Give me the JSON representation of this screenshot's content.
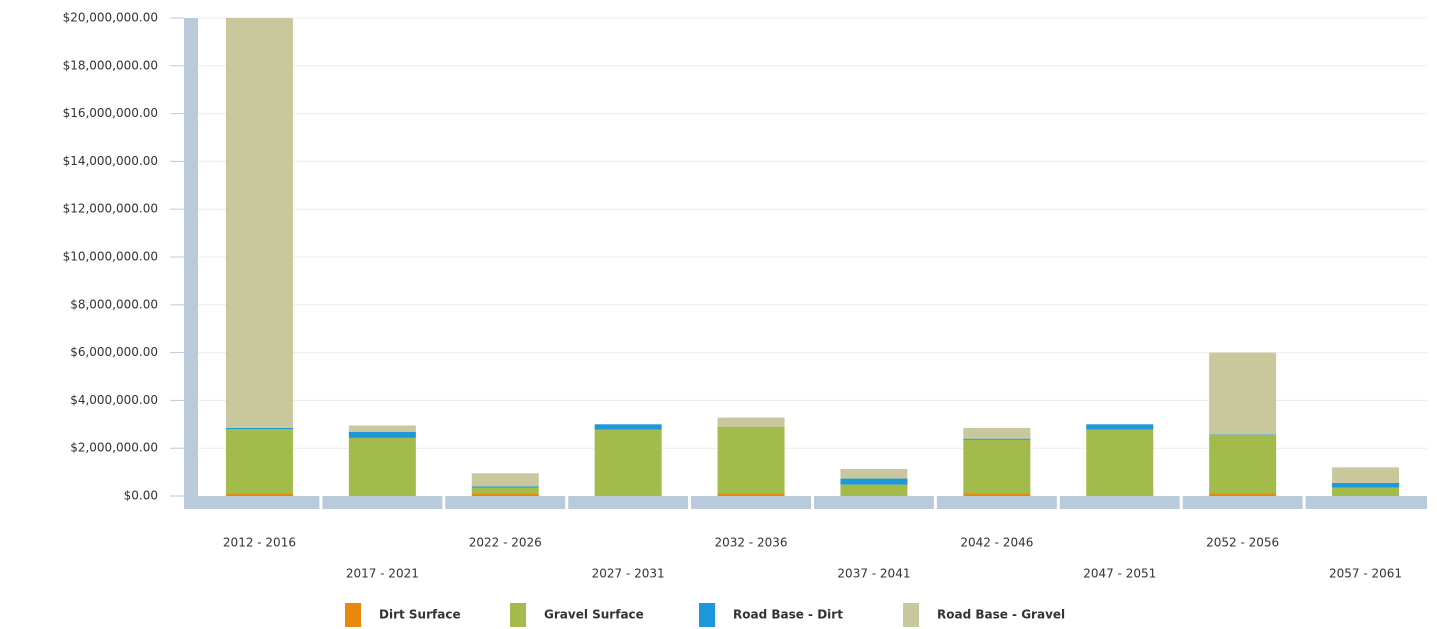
{
  "chart_data": {
    "type": "stacked_bar",
    "categories": [
      "2012 - 2016",
      "2017 - 2021",
      "2022 - 2026",
      "2027 - 2031",
      "2032 - 2036",
      "2037 - 2041",
      "2042 - 2046",
      "2047 - 2051",
      "2052 - 2056",
      "2057 - 2061"
    ],
    "series": [
      {
        "name": "Dirt Surface",
        "color": "#e8890c",
        "values": [
          100000,
          30000,
          100000,
          30000,
          120000,
          30000,
          120000,
          30000,
          120000,
          30000
        ]
      },
      {
        "name": "Gravel Surface",
        "color": "#a2bb4b",
        "values": [
          2700000,
          2400000,
          250000,
          2750000,
          2730000,
          450000,
          2230000,
          2750000,
          2430000,
          320000
        ]
      },
      {
        "name": "Road Base - Dirt",
        "color": "#1d98dc",
        "values": [
          50000,
          250000,
          50000,
          220000,
          30000,
          250000,
          50000,
          220000,
          20000,
          200000
        ]
      },
      {
        "name": "Road Base - Gravel",
        "color": "#c9c89d",
        "values": [
          17150000,
          270000,
          550000,
          0,
          400000,
          400000,
          450000,
          0,
          3430000,
          650000
        ]
      }
    ],
    "ylim": [
      0,
      20000000
    ],
    "yticks": [
      {
        "value": 0,
        "label": "$0.00"
      },
      {
        "value": 2000000,
        "label": "$2,000,000.00"
      },
      {
        "value": 4000000,
        "label": "$4,000,000.00"
      },
      {
        "value": 6000000,
        "label": "$6,000,000.00"
      },
      {
        "value": 8000000,
        "label": "$8,000,000.00"
      },
      {
        "value": 10000000,
        "label": "$10,000,000.00"
      },
      {
        "value": 12000000,
        "label": "$12,000,000.00"
      },
      {
        "value": 14000000,
        "label": "$14,000,000.00"
      },
      {
        "value": 16000000,
        "label": "$16,000,000.00"
      },
      {
        "value": 18000000,
        "label": "$18,000,000.00"
      },
      {
        "value": 20000000,
        "label": "$20,000,000.00"
      }
    ],
    "grid": true
  }
}
